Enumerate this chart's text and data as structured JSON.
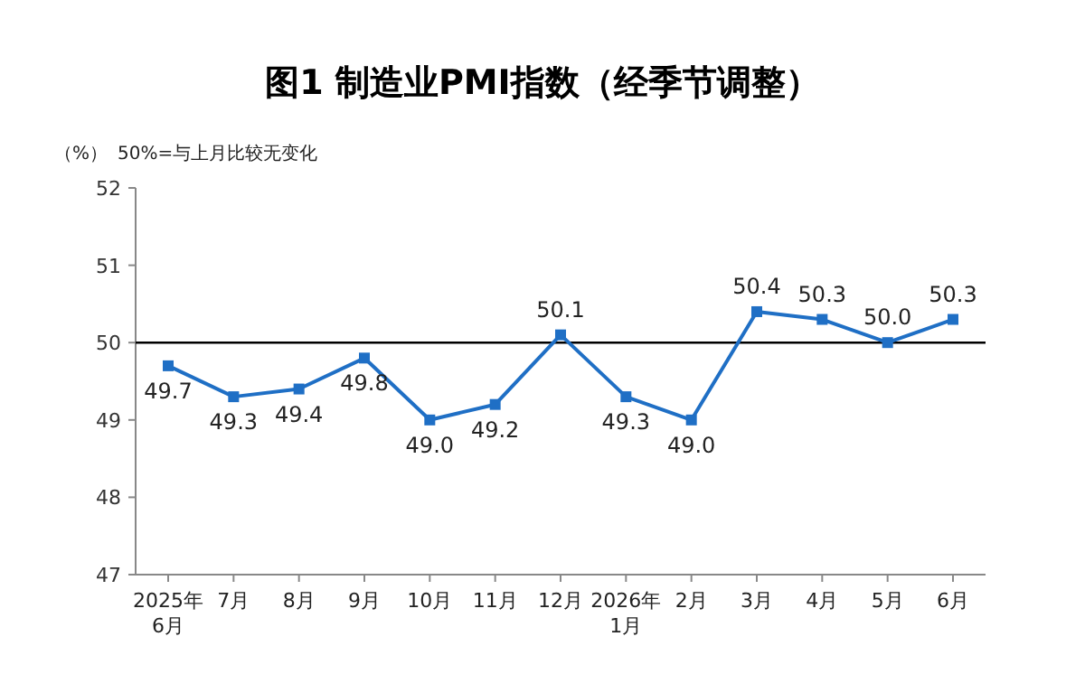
{
  "chart_data": {
    "type": "line",
    "title": "图1 制造业PMI指数（经季节调整）",
    "annotations": [
      "（%）",
      "50%=与上月比较无变化"
    ],
    "categories": [
      "2025年\n6月",
      "7月",
      "8月",
      "9月",
      "10月",
      "11月",
      "12月",
      "2026年\n1月",
      "2月",
      "3月",
      "4月",
      "5月",
      "6月"
    ],
    "series": [
      {
        "color": "#1f6fc5",
        "values": [
          49.7,
          49.3,
          49.4,
          49.8,
          49.0,
          49.2,
          50.1,
          49.3,
          49.0,
          50.4,
          50.3,
          50.0,
          50.3
        ],
        "value_labels": [
          "49.7",
          "49.3",
          "49.4",
          "49.8",
          "49.0",
          "49.2",
          "50.1",
          "49.3",
          "49.0",
          "50.4",
          "50.3",
          "50.0",
          "50.3"
        ]
      }
    ],
    "ylim": [
      47,
      52
    ],
    "yticks": [
      47,
      48,
      49,
      50,
      51,
      52
    ],
    "grid": false,
    "marker": "square",
    "line_style": "solid",
    "ref_lines": [
      {
        "axis": "y",
        "value": 50,
        "label": null,
        "color": "#000000"
      }
    ]
  }
}
